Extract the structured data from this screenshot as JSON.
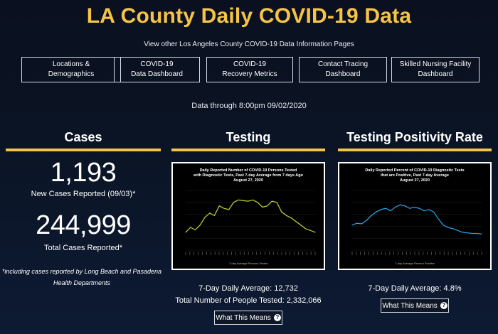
{
  "header": {
    "title": "LA County Daily COVID-19 Data",
    "subtitle": "View other Los Angeles County COVID-19 Data Information Pages"
  },
  "nav": [
    {
      "line1": "Locations &",
      "line2": "Demographics"
    },
    {
      "line1": "COVID-19",
      "line2": "Data Dashboard"
    },
    {
      "line1": "COVID-19",
      "line2": "Recovery Metrics"
    },
    {
      "line1": "Contact Tracing",
      "line2": "Dashboard"
    },
    {
      "line1": "Skilled Nursing Facility",
      "line2": "Dashboard"
    }
  ],
  "data_through": "Data through 8:00pm 09/02/2020",
  "cases": {
    "heading": "Cases",
    "new_value": "1,193",
    "new_label": "New Cases Reported (09/03)*",
    "total_value": "244,999",
    "total_label": "Total Cases Reported*",
    "footnote_line1": "*including cases reported by Long Beach and Pasadena",
    "footnote_line2": "Health Departments"
  },
  "testing": {
    "heading": "Testing",
    "chart_title_line1": "Daily Reported Number of COVID-19 Persons Tested",
    "chart_title_line2": "with Diagnostic Tests, Past 7-day Average from 7 days Ago",
    "chart_title_line3": "August 27, 2020",
    "legend": "7-day Average Persons Tested",
    "line_color": "#b5c832",
    "stat1": "7-Day Daily Average: 12,732",
    "stat2": "Total Number of People Tested: 2,332,066",
    "button": "What This Means"
  },
  "positivity": {
    "heading": "Testing Positivity Rate",
    "chart_title_line1": "Daily Reported Percent of COVID-19 Diagnostic Tests",
    "chart_title_line2": "that are Positive, Past 7-day Average",
    "chart_title_line3": "August 27, 2020",
    "legend": "7-day Average Percent Positive",
    "line_color": "#2a9fd8",
    "stat1": "7-Day Daily Average: 4.8%",
    "button": "What This Means"
  },
  "chart_data": [
    {
      "type": "line",
      "series": [
        {
          "values": [
            0.3,
            0.38,
            0.34,
            0.42,
            0.55,
            0.62,
            0.58,
            0.74,
            0.7,
            0.68,
            0.8,
            0.84,
            0.83,
            0.82,
            0.84,
            0.8,
            0.72,
            0.74,
            0.82,
            0.8,
            0.64,
            0.58,
            0.54,
            0.48,
            0.42,
            0.36,
            0.33,
            0.3
          ]
        }
      ]
    },
    {
      "type": "line",
      "series": [
        {
          "values": [
            0.42,
            0.45,
            0.44,
            0.5,
            0.58,
            0.64,
            0.68,
            0.7,
            0.66,
            0.72,
            0.76,
            0.74,
            0.7,
            0.72,
            0.7,
            0.66,
            0.68,
            0.64,
            0.52,
            0.42,
            0.38,
            0.36,
            0.33,
            0.3,
            0.29,
            0.28,
            0.28,
            0.27
          ]
        }
      ]
    }
  ]
}
